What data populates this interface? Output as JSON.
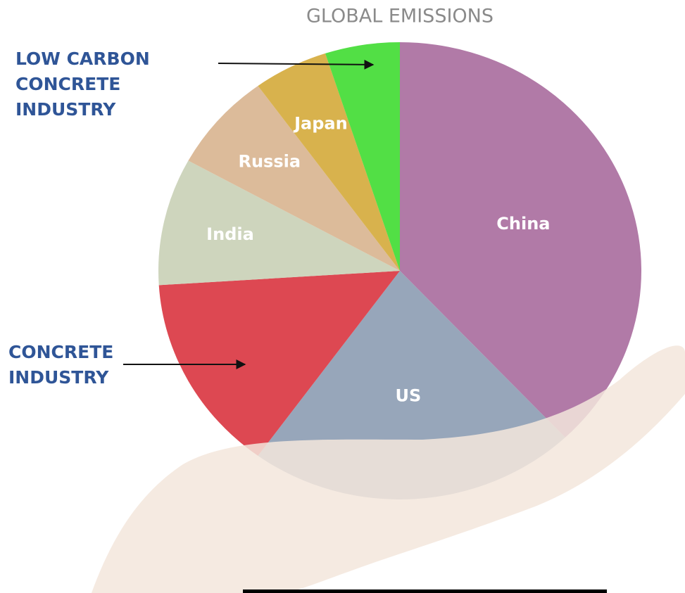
{
  "chart_data": {
    "type": "pie",
    "title": "GLOBAL EMISSIONS",
    "categories": [
      "China",
      "US",
      "CONCRETE INDUSTRY",
      "India",
      "Russia",
      "Japan",
      "LOW CARBON CONCRETE INDUSTRY"
    ],
    "values": [
      38,
      22,
      14,
      9,
      7,
      5,
      5
    ],
    "colors": [
      "#a96c9d",
      "#8c9cb2",
      "#d9343f",
      "#c9d0b6",
      "#d8b48f",
      "#d4aa3a",
      "#3fdc31"
    ]
  }
}
